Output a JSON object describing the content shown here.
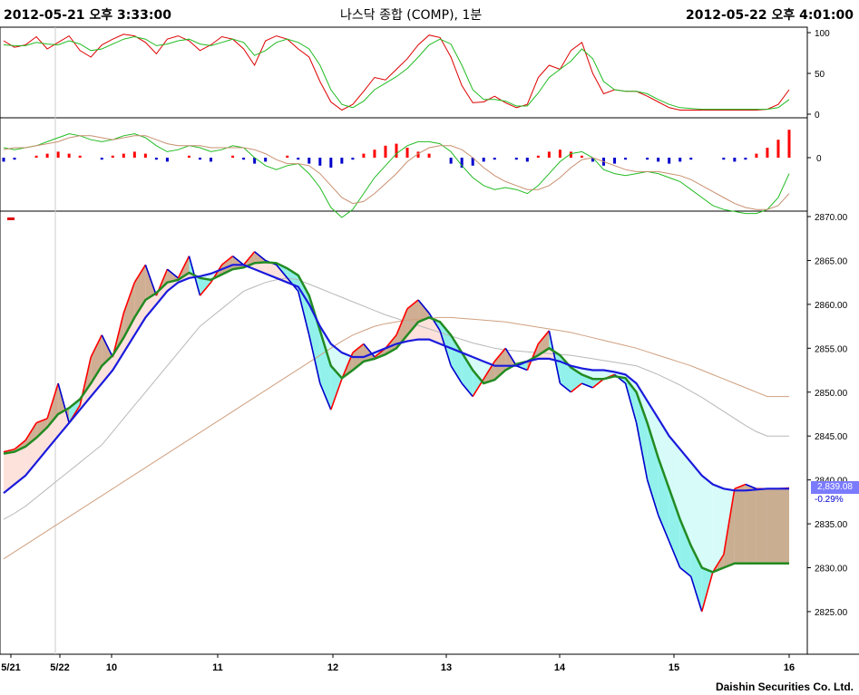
{
  "header": {
    "left_timestamp": "2012-05-21 오후 3:33:00",
    "title": "나스닥 종합 (COMP), 1분",
    "right_timestamp": "2012-05-22 오후 4:01:00"
  },
  "footer": {
    "brand": "Daishin Securities Co. Ltd."
  },
  "last_price": {
    "value": "2,839.08",
    "change": "-0.29%"
  },
  "colors": {
    "up": "#ff0000",
    "down": "#0000cc",
    "ma_short": "#228b22",
    "ma_long": "#1a1adc",
    "ma_mid": "#b0b0b0",
    "ma_slow": "#c8a080",
    "fill_up": "#c8a080",
    "fill_down": "#7ff0e8"
  },
  "chart_data": [
    {
      "type": "line",
      "panel": "stochastic",
      "y_ticks": [
        "100",
        "50",
        "0"
      ],
      "ylim": [
        0,
        100
      ],
      "x": [
        0,
        1,
        2,
        3,
        4,
        5,
        6,
        7,
        8,
        9,
        10,
        11,
        12,
        13,
        14,
        15,
        16,
        17,
        18,
        19,
        20,
        21,
        22,
        23,
        24,
        25,
        26,
        27,
        28,
        29,
        30,
        31,
        32,
        33,
        34,
        35,
        36,
        37,
        38,
        39,
        40,
        41,
        42,
        43,
        44,
        45,
        46,
        47,
        48,
        49,
        50,
        51,
        52,
        53,
        54,
        55,
        56,
        57,
        58,
        59,
        60,
        61,
        62,
        63,
        64,
        65,
        66,
        67,
        68,
        69,
        70,
        71,
        72
      ],
      "series": [
        {
          "values": [
            90,
            82,
            85,
            95,
            80,
            88,
            96,
            78,
            70,
            85,
            92,
            98,
            96,
            88,
            74,
            92,
            96,
            90,
            78,
            85,
            95,
            92,
            80,
            60,
            90,
            96,
            92,
            80,
            70,
            40,
            15,
            5,
            12,
            28,
            45,
            42,
            55,
            68,
            85,
            97,
            94,
            70,
            35,
            14,
            15,
            22,
            14,
            8,
            12,
            45,
            60,
            55,
            78,
            88,
            50,
            25,
            30,
            28,
            28,
            22,
            15,
            8,
            5,
            5,
            5,
            5,
            5,
            5,
            5,
            5,
            6,
            12,
            30
          ]
        },
        {
          "values": [
            85,
            84,
            84,
            88,
            86,
            85,
            90,
            86,
            78,
            80,
            86,
            92,
            95,
            92,
            84,
            86,
            90,
            92,
            86,
            84,
            88,
            92,
            88,
            72,
            78,
            88,
            92,
            88,
            80,
            60,
            30,
            12,
            8,
            16,
            30,
            38,
            46,
            56,
            70,
            85,
            92,
            86,
            60,
            30,
            18,
            18,
            16,
            10,
            10,
            26,
            45,
            55,
            65,
            80,
            68,
            40,
            30,
            28,
            28,
            25,
            18,
            12,
            8,
            7,
            6,
            6,
            6,
            6,
            6,
            6,
            6,
            8,
            18
          ]
        }
      ]
    },
    {
      "type": "bar",
      "panel": "macd",
      "y_ticks": [
        "0"
      ],
      "x": [
        0,
        1,
        2,
        3,
        4,
        5,
        6,
        7,
        8,
        9,
        10,
        11,
        12,
        13,
        14,
        15,
        16,
        17,
        18,
        19,
        20,
        21,
        22,
        23,
        24,
        25,
        26,
        27,
        28,
        29,
        30,
        31,
        32,
        33,
        34,
        35,
        36,
        37,
        38,
        39,
        40,
        41,
        42,
        43,
        44,
        45,
        46,
        47,
        48,
        49,
        50,
        51,
        52,
        53,
        54,
        55,
        56,
        57,
        58,
        59,
        60,
        61,
        62,
        63,
        64,
        65,
        66,
        67,
        68,
        69,
        70,
        71,
        72
      ],
      "series": [
        {
          "values": [
            -2,
            -1,
            0,
            1,
            2,
            3,
            2,
            1,
            0,
            -1,
            1,
            2,
            3,
            2,
            -1,
            -2,
            0,
            1,
            -1,
            -2,
            0,
            1,
            -1,
            -3,
            -2,
            0,
            1,
            -1,
            -3,
            -4,
            -5,
            -3,
            -1,
            2,
            4,
            6,
            7,
            5,
            3,
            2,
            0,
            -3,
            -5,
            -4,
            -2,
            -1,
            0,
            -1,
            -2,
            1,
            3,
            4,
            3,
            1,
            -2,
            -4,
            -3,
            -1,
            0,
            -1,
            -2,
            -3,
            -2,
            -1,
            0,
            0,
            -1,
            -2,
            -1,
            2,
            5,
            9,
            14
          ]
        },
        {
          "values": [
            5,
            4,
            5,
            6,
            8,
            10,
            12,
            11,
            9,
            8,
            9,
            11,
            12,
            10,
            6,
            3,
            4,
            6,
            5,
            3,
            4,
            6,
            5,
            0,
            -4,
            -6,
            -4,
            -3,
            -8,
            -15,
            -25,
            -30,
            -26,
            -18,
            -10,
            -4,
            2,
            6,
            8,
            8,
            7,
            3,
            -4,
            -10,
            -14,
            -16,
            -15,
            -16,
            -18,
            -14,
            -8,
            -2,
            2,
            3,
            0,
            -6,
            -8,
            -9,
            -8,
            -7,
            -8,
            -10,
            -12,
            -16,
            -20,
            -24,
            -26,
            -27,
            -28,
            -28,
            -26,
            -20,
            -8
          ]
        },
        {
          "values": [
            4,
            5,
            5,
            6,
            7,
            8,
            10,
            11,
            11,
            10,
            9,
            10,
            11,
            11,
            9,
            7,
            6,
            6,
            6,
            5,
            5,
            5,
            5,
            4,
            2,
            -1,
            -3,
            -3,
            -4,
            -8,
            -14,
            -20,
            -23,
            -22,
            -18,
            -13,
            -8,
            -2,
            2,
            5,
            6,
            6,
            4,
            0,
            -5,
            -9,
            -12,
            -14,
            -16,
            -16,
            -14,
            -10,
            -5,
            -1,
            0,
            -2,
            -4,
            -6,
            -7,
            -7,
            -7,
            -8,
            -9,
            -11,
            -14,
            -17,
            -20,
            -23,
            -25,
            -26,
            -26,
            -24,
            -18
          ]
        }
      ]
    },
    {
      "type": "line",
      "panel": "price",
      "x_ticks": [
        "5/21",
        "5/22",
        "10",
        "11",
        "12",
        "13",
        "14",
        "15",
        "16"
      ],
      "y_ticks": [
        "2870.00",
        "2865.00",
        "2860.00",
        "2855.00",
        "2850.00",
        "2845.00",
        "2840.00",
        "2835.00",
        "2830.00",
        "2825.00"
      ],
      "ylim": [
        2820,
        2870
      ],
      "x": [
        0,
        1,
        2,
        3,
        4,
        5,
        6,
        7,
        8,
        9,
        10,
        11,
        12,
        13,
        14,
        15,
        16,
        17,
        18,
        19,
        20,
        21,
        22,
        23,
        24,
        25,
        26,
        27,
        28,
        29,
        30,
        31,
        32,
        33,
        34,
        35,
        36,
        37,
        38,
        39,
        40,
        41,
        42,
        43,
        44,
        45,
        46,
        47,
        48,
        49,
        50,
        51,
        52,
        53,
        54,
        55,
        56,
        57,
        58,
        59,
        60,
        61,
        62,
        63,
        64,
        65,
        66,
        67,
        68,
        69,
        70,
        71,
        72
      ],
      "series": [
        {
          "values": [
            2843.2,
            2843.5,
            2844.5,
            2846.5,
            2847.0,
            2851.0,
            2846.5,
            2848.5,
            2854.0,
            2856.5,
            2854.0,
            2859.0,
            2862.5,
            2864.5,
            2861.0,
            2864.0,
            2863.0,
            2865.5,
            2861.0,
            2862.5,
            2864.5,
            2865.5,
            2864.5,
            2866.0,
            2865.0,
            2864.5,
            2863.0,
            2861.5,
            2856.5,
            2851.0,
            2848.0,
            2851.5,
            2854.5,
            2855.5,
            2854.0,
            2855.0,
            2856.5,
            2859.5,
            2860.5,
            2859.0,
            2857.0,
            2853.0,
            2851.0,
            2849.5,
            2851.5,
            2853.5,
            2855.0,
            2853.0,
            2852.5,
            2855.5,
            2857.0,
            2851.0,
            2850.0,
            2851.0,
            2850.5,
            2851.5,
            2852.0,
            2851.0,
            2846.5,
            2840.0,
            2836.0,
            2833.0,
            2830.0,
            2829.0,
            2825.0,
            2829.5,
            2831.5,
            2839.0,
            2839.5,
            2839.0,
            2839.0,
            2839.0,
            2839.08
          ]
        },
        {
          "values": [
            2843.0,
            2843.2,
            2843.8,
            2844.8,
            2846.0,
            2847.5,
            2848.2,
            2849.2,
            2851.0,
            2853.0,
            2854.2,
            2856.2,
            2858.5,
            2860.5,
            2861.3,
            2862.5,
            2862.8,
            2863.6,
            2863.0,
            2862.8,
            2863.4,
            2864.0,
            2864.2,
            2864.7,
            2864.8,
            2864.7,
            2864.1,
            2863.3,
            2861.0,
            2857.0,
            2853.0,
            2851.6,
            2852.5,
            2853.5,
            2853.8,
            2854.3,
            2855.0,
            2856.5,
            2858.0,
            2858.5,
            2858.0,
            2856.5,
            2854.5,
            2852.5,
            2851.0,
            2851.4,
            2852.5,
            2853.2,
            2853.5,
            2854.2,
            2855.0,
            2854.2,
            2852.8,
            2852.0,
            2851.5,
            2851.5,
            2851.8,
            2851.6,
            2850.0,
            2846.5,
            2842.5,
            2839.0,
            2835.5,
            2832.5,
            2830.0,
            2829.5,
            2830.0,
            2830.5,
            2830.5,
            2830.5,
            2830.5,
            2830.5,
            2830.5
          ]
        },
        {
          "values": [
            2838.5,
            2839.5,
            2840.5,
            2842.0,
            2843.5,
            2845.0,
            2846.5,
            2848.0,
            2849.5,
            2851.0,
            2852.5,
            2854.5,
            2856.5,
            2858.5,
            2860.0,
            2861.5,
            2862.5,
            2863.0,
            2863.2,
            2863.5,
            2864.0,
            2864.5,
            2864.5,
            2864.0,
            2863.5,
            2863.0,
            2862.5,
            2862.0,
            2860.0,
            2857.5,
            2855.5,
            2854.5,
            2854.0,
            2854.0,
            2854.5,
            2855.0,
            2855.5,
            2855.8,
            2856.0,
            2856.0,
            2855.5,
            2855.0,
            2854.5,
            2854.0,
            2853.5,
            2853.0,
            2853.0,
            2853.0,
            2853.5,
            2853.8,
            2853.8,
            2853.5,
            2853.0,
            2852.7,
            2852.5,
            2852.5,
            2852.3,
            2852.0,
            2851.0,
            2849.0,
            2847.0,
            2845.0,
            2843.5,
            2842.0,
            2840.5,
            2839.5,
            2839.0,
            2838.8,
            2838.8,
            2838.9,
            2839.0,
            2839.0,
            2839.0
          ]
        },
        {
          "values": [
            2835.5,
            2836.2,
            2837.0,
            2838.0,
            2839.0,
            2840.0,
            2841.0,
            2842.0,
            2843.0,
            2844.0,
            2845.5,
            2847.0,
            2848.5,
            2850.0,
            2851.5,
            2853.0,
            2854.5,
            2856.0,
            2857.5,
            2858.5,
            2859.5,
            2860.5,
            2861.5,
            2862.0,
            2862.5,
            2862.8,
            2863.0,
            2862.8,
            2862.3,
            2861.8,
            2861.3,
            2860.8,
            2860.3,
            2859.8,
            2859.3,
            2858.8,
            2858.4,
            2858.0,
            2857.6,
            2857.2,
            2856.8,
            2856.4,
            2856.0,
            2855.6,
            2855.3,
            2855.0,
            2854.8,
            2854.7,
            2854.6,
            2854.5,
            2854.4,
            2854.3,
            2854.2,
            2854.0,
            2853.8,
            2853.6,
            2853.4,
            2853.2,
            2853.0,
            2852.5,
            2852.0,
            2851.4,
            2850.8,
            2850.1,
            2849.4,
            2848.6,
            2847.8,
            2847.0,
            2846.2,
            2845.5,
            2845.0,
            2845.0,
            2845.0
          ]
        },
        {
          "values": [
            2831.0,
            2831.8,
            2832.6,
            2833.4,
            2834.2,
            2835.0,
            2835.8,
            2836.6,
            2837.4,
            2838.2,
            2839.0,
            2839.8,
            2840.6,
            2841.4,
            2842.2,
            2843.0,
            2843.8,
            2844.6,
            2845.4,
            2846.2,
            2847.0,
            2847.8,
            2848.6,
            2849.4,
            2850.2,
            2851.0,
            2851.8,
            2852.6,
            2853.4,
            2854.2,
            2855.0,
            2855.8,
            2856.5,
            2857.0,
            2857.5,
            2857.8,
            2858.0,
            2858.2,
            2858.3,
            2858.4,
            2858.5,
            2858.5,
            2858.4,
            2858.3,
            2858.2,
            2858.1,
            2858.0,
            2857.8,
            2857.6,
            2857.4,
            2857.2,
            2857.0,
            2856.8,
            2856.5,
            2856.2,
            2855.9,
            2855.6,
            2855.3,
            2855.0,
            2854.6,
            2854.2,
            2853.8,
            2853.4,
            2853.0,
            2852.5,
            2852.0,
            2851.5,
            2851.0,
            2850.5,
            2850.0,
            2849.5,
            2849.5,
            2849.5
          ]
        }
      ]
    }
  ]
}
